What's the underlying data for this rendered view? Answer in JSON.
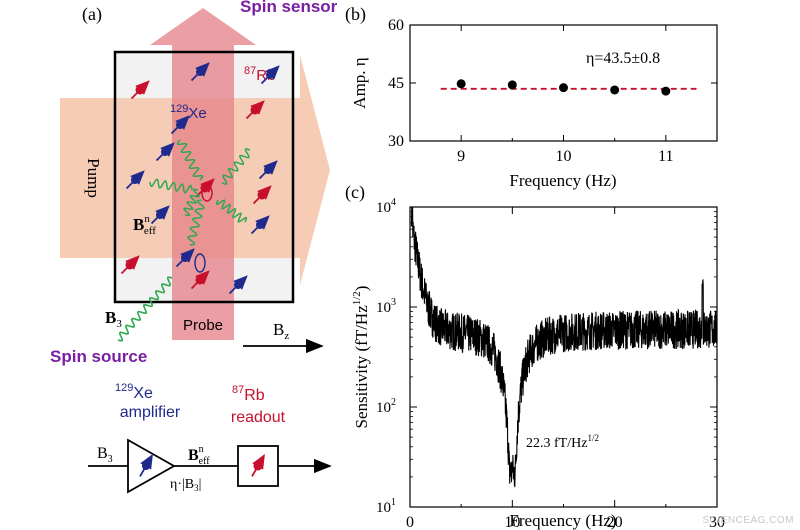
{
  "panel_a": {
    "label": "(a)",
    "spin_sensor": "Spin sensor",
    "spin_source": "Spin source",
    "rb_mass": "87",
    "rb_el": "Rb",
    "xe_mass": "129",
    "xe_el": "Xe",
    "pump": "Pump",
    "probe": "Probe",
    "beff_main": "B",
    "beff_sup": "n",
    "beff_sub": "eff",
    "b3": "B",
    "b3_sub": "3",
    "bz": "B",
    "bz_sub": "z",
    "colors": {
      "rb": "#c8102e",
      "xe": "#1f2a8c",
      "wave": "#2fa84f",
      "pump": "#f6c7ad",
      "probe": "#e47f86",
      "source": "#7a1fa2"
    }
  },
  "schematic": {
    "xe_mass": "129",
    "xe_el": "Xe",
    "amplifier": "amplifier",
    "rb_mass": "87",
    "rb_el": "Rb",
    "readout": "readout",
    "input_main": "B",
    "input_sub": "3",
    "mid_main": "B",
    "mid_sup": "n",
    "mid_sub": "eff",
    "gain": "η·|B",
    "gain_sub": "3",
    "gain_end": "|"
  },
  "chart_data": [
    {
      "id": "b",
      "label": "(b)",
      "type": "scatter",
      "x": [
        9.0,
        9.5,
        10.0,
        10.5,
        11.0
      ],
      "y": [
        44.8,
        44.5,
        43.8,
        43.2,
        42.9
      ],
      "fit_value": 43.5,
      "annotation": "η=43.5±0.8",
      "xlabel": "Frequency (Hz)",
      "ylabel": "Amp. η",
      "xlim": [
        8.5,
        11.5
      ],
      "ylim": [
        30,
        60
      ],
      "xticks": [
        "9",
        "10",
        "11"
      ],
      "yticks": [
        "30",
        "45",
        "60"
      ]
    },
    {
      "id": "c",
      "label": "(c)",
      "type": "line",
      "yscale": "log",
      "xlabel": "Frequency (Hz)",
      "ylabel": "Sensitivity (fT/Hz",
      "ylabel_sup": "1/2",
      "ylabel_end": ")",
      "xlim": [
        0,
        30
      ],
      "ylim": [
        10,
        10000
      ],
      "xticks": [
        "0",
        "10",
        "20",
        "30"
      ],
      "yticks": [
        {
          "base": "10",
          "exp": "1"
        },
        {
          "base": "10",
          "exp": "2"
        },
        {
          "base": "10",
          "exp": "3"
        },
        {
          "base": "10",
          "exp": "4"
        }
      ],
      "minimum": {
        "x": 10.0,
        "y": 22.3
      },
      "annotation": "22.3 fT/Hz",
      "annotation_sup": "1/2",
      "baseline_level": 600,
      "low_freq_start": 10000,
      "spike": {
        "x": 28.6,
        "y": 2000
      }
    }
  ],
  "watermark": "SCIENCEAG.COM"
}
